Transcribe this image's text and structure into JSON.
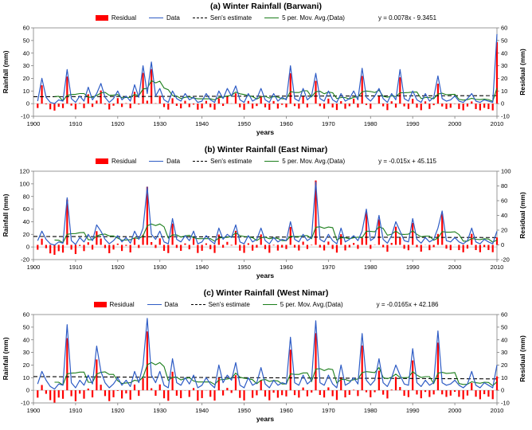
{
  "legend": {
    "residual": "Residual",
    "data": "Data",
    "sens": "Sen's estimate",
    "movavg": "5 per. Mov. Avg.(Data)"
  },
  "colors": {
    "residual": "#ff0000",
    "data": "#2e5cc5",
    "sens": "#000000",
    "movavg": "#1b7e1b",
    "border": "#7f7f7f",
    "zero_line": "#bfbfbf"
  },
  "chart_data": [
    {
      "type": "line",
      "secondary_type": "bar",
      "title": "(a) Winter Rainfall (Barwani)",
      "equation": "y = 0.0078x - 9.3451",
      "xlabel": "years",
      "ylabel_left": "Rainfall (mm)",
      "ylabel_right": "Residual (mm)",
      "xlim": [
        1900,
        2010
      ],
      "xticks": [
        1900,
        1910,
        1920,
        1930,
        1940,
        1950,
        1960,
        1970,
        1980,
        1990,
        2000,
        2010
      ],
      "ylim_left": [
        -10,
        60
      ],
      "yticks_left": [
        -10,
        0,
        10,
        20,
        30,
        40,
        50,
        60
      ],
      "ylim_right": [
        -10,
        60
      ],
      "yticks_right": [
        -10,
        0,
        10,
        20,
        30,
        40,
        50,
        60
      ],
      "trend": {
        "slope": 0.0078,
        "intercept": -9.3451
      },
      "years_start": 1901,
      "data": [
        2,
        20,
        5,
        1,
        0,
        3,
        2,
        27,
        4,
        1,
        6,
        2,
        13,
        3,
        8,
        16,
        5,
        1,
        4,
        10,
        3,
        6,
        2,
        15,
        5,
        30,
        8,
        33,
        6,
        12,
        3,
        1,
        10,
        4,
        2,
        8,
        3,
        5,
        1,
        2,
        8,
        3,
        1,
        10,
        4,
        12,
        6,
        14,
        3,
        1,
        8,
        2,
        4,
        12,
        3,
        1,
        8,
        2,
        5,
        3,
        30,
        4,
        2,
        12,
        3,
        6,
        24,
        4,
        2,
        10,
        3,
        1,
        8,
        2,
        4,
        10,
        3,
        28,
        5,
        2,
        6,
        12,
        4,
        1,
        8,
        3,
        27,
        4,
        2,
        10,
        3,
        1,
        8,
        2,
        5,
        22,
        4,
        2,
        3,
        6,
        2,
        1,
        4,
        8,
        2,
        1,
        3,
        2,
        1,
        55
      ],
      "derived": {
        "residual": "data - sens_estimate",
        "movavg": "trailing 5-period mean of data"
      }
    },
    {
      "type": "line",
      "secondary_type": "bar",
      "title": "(b) Winter Rainfall (East Nimar)",
      "equation": "y = -0.015x + 45.115",
      "xlabel": "years",
      "ylabel_left": "Rainfall (mm)",
      "ylabel_right": "Residual (mm)",
      "xlim": [
        1900,
        2010
      ],
      "xticks": [
        1900,
        1910,
        1920,
        1930,
        1940,
        1950,
        1960,
        1970,
        1980,
        1990,
        2000,
        2010
      ],
      "ylim_left": [
        -20,
        120
      ],
      "yticks_left": [
        -20,
        0,
        20,
        40,
        60,
        80,
        100,
        120
      ],
      "ylim_right": [
        -20,
        100
      ],
      "yticks_right": [
        -20,
        0,
        20,
        40,
        60,
        80,
        100
      ],
      "trend": {
        "slope": -0.015,
        "intercept": 45.115
      },
      "years_start": 1901,
      "data": [
        10,
        25,
        12,
        5,
        3,
        8,
        6,
        78,
        10,
        4,
        15,
        8,
        20,
        10,
        35,
        25,
        12,
        5,
        10,
        18,
        8,
        15,
        6,
        25,
        12,
        30,
        95,
        20,
        12,
        25,
        8,
        5,
        45,
        12,
        8,
        18,
        10,
        25,
        5,
        8,
        18,
        10,
        5,
        30,
        12,
        20,
        15,
        35,
        8,
        5,
        18,
        8,
        12,
        30,
        10,
        5,
        15,
        8,
        12,
        10,
        40,
        12,
        8,
        20,
        10,
        15,
        103,
        12,
        8,
        20,
        10,
        5,
        30,
        8,
        12,
        18,
        10,
        25,
        60,
        10,
        15,
        50,
        12,
        6,
        18,
        40,
        25,
        10,
        8,
        45,
        12,
        6,
        15,
        8,
        12,
        30,
        57,
        10,
        8,
        15,
        8,
        5,
        10,
        30,
        8,
        5,
        12,
        8,
        5,
        25
      ],
      "derived": {
        "residual": "data - sens_estimate",
        "movavg": "trailing 5-period mean of data"
      }
    },
    {
      "type": "line",
      "secondary_type": "bar",
      "title": "(c) Winter Rainfall (West Nimar)",
      "equation": "y = -0.0165x + 42.186",
      "xlabel": "years",
      "ylabel_left": "Rainfall (mm)",
      "ylabel_right": "Residual (mm)",
      "xlim": [
        1900,
        2010
      ],
      "xticks": [
        1900,
        1910,
        1920,
        1930,
        1940,
        1950,
        1960,
        1970,
        1980,
        1990,
        2000,
        2010
      ],
      "ylim_left": [
        -10,
        60
      ],
      "yticks_left": [
        -10,
        0,
        10,
        20,
        30,
        40,
        50,
        60
      ],
      "ylim_right": [
        -10,
        60
      ],
      "yticks_right": [
        -10,
        0,
        10,
        20,
        30,
        40,
        50,
        60
      ],
      "trend": {
        "slope": -0.0165,
        "intercept": 42.186
      },
      "years_start": 1901,
      "data": [
        5,
        15,
        8,
        3,
        1,
        5,
        4,
        52,
        6,
        2,
        8,
        4,
        12,
        5,
        35,
        15,
        6,
        2,
        5,
        10,
        4,
        8,
        3,
        15,
        6,
        20,
        57,
        12,
        6,
        15,
        4,
        2,
        25,
        6,
        4,
        10,
        5,
        12,
        2,
        4,
        10,
        5,
        2,
        20,
        6,
        12,
        8,
        22,
        4,
        2,
        10,
        4,
        6,
        18,
        5,
        2,
        8,
        4,
        6,
        5,
        42,
        6,
        4,
        12,
        5,
        8,
        55,
        6,
        4,
        12,
        5,
        2,
        20,
        4,
        6,
        10,
        5,
        45,
        8,
        4,
        8,
        25,
        6,
        3,
        10,
        20,
        12,
        5,
        4,
        33,
        6,
        3,
        8,
        4,
        6,
        47,
        6,
        4,
        5,
        8,
        4,
        2,
        5,
        15,
        4,
        2,
        6,
        4,
        2,
        20
      ],
      "derived": {
        "residual": "data - sens_estimate",
        "movavg": "trailing 5-period mean of data"
      }
    }
  ]
}
